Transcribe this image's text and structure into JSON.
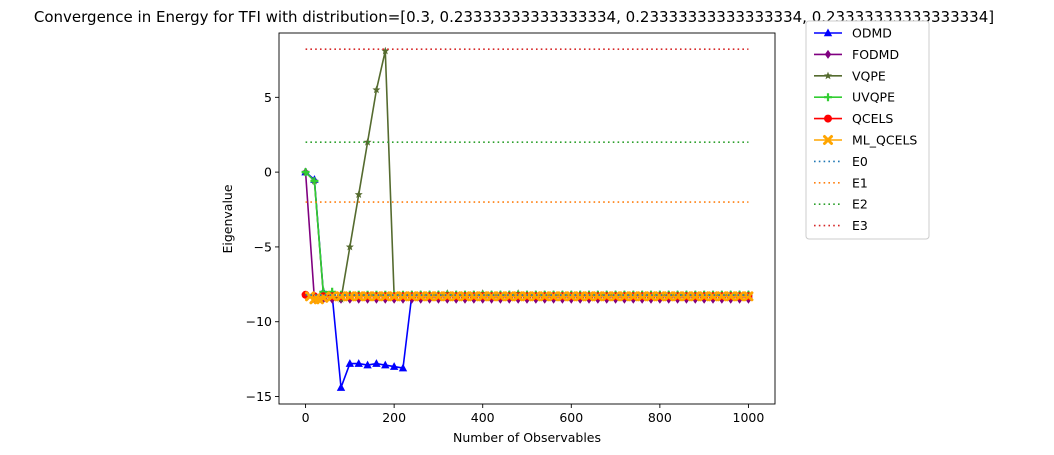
{
  "chart_data": {
    "type": "line",
    "title": "Convergence in Energy for TFI with distribution=[0.3, 0.23333333333333334, 0.23333333333333334, 0.23333333333333334]",
    "xlabel": "Number of Observables",
    "ylabel": "Eigenvalue",
    "xlim": [
      -60,
      1060
    ],
    "ylim": [
      -15.5,
      9.3
    ],
    "xticks": [
      0,
      200,
      400,
      600,
      800,
      1000
    ],
    "xtick_labels": [
      "0",
      "200",
      "400",
      "600",
      "800",
      "1000"
    ],
    "yticks": [
      -15,
      -10,
      -5,
      0,
      5
    ],
    "ytick_labels": [
      "−15",
      "−10",
      "−5",
      "0",
      "5"
    ],
    "grid": false,
    "legend_placement": "outside-upper-right",
    "series": [
      {
        "name": "ODMD",
        "color": "#0000ff",
        "marker": "triangle",
        "linestyle": "solid",
        "x": [
          0,
          20,
          40,
          60,
          80,
          100,
          120,
          140,
          160,
          180,
          200,
          220,
          240,
          260,
          280,
          300,
          320,
          340,
          360,
          380,
          400,
          420,
          440,
          460,
          480,
          500,
          520,
          540,
          560,
          580,
          600,
          620,
          640,
          660,
          680,
          700,
          720,
          740,
          760,
          780,
          800,
          820,
          840,
          860,
          880,
          900,
          920,
          940,
          960,
          980,
          1000
        ],
        "y": [
          0.0,
          -0.5,
          -8.0,
          -8.2,
          -14.4,
          -12.8,
          -12.8,
          -12.9,
          -12.8,
          -12.9,
          -13.0,
          -13.1,
          -8.2,
          -8.2,
          -8.2,
          -8.2,
          -8.2,
          -8.2,
          -8.2,
          -8.2,
          -8.2,
          -8.2,
          -8.2,
          -8.2,
          -8.2,
          -8.2,
          -8.2,
          -8.2,
          -8.2,
          -8.2,
          -8.2,
          -8.2,
          -8.2,
          -8.2,
          -8.2,
          -8.2,
          -8.2,
          -8.2,
          -8.2,
          -8.2,
          -8.2,
          -8.2,
          -8.2,
          -8.2,
          -8.2,
          -8.2,
          -8.2,
          -8.2,
          -8.2,
          -8.2,
          -8.2
        ]
      },
      {
        "name": "FODMD",
        "color": "#800080",
        "marker": "diamond",
        "linestyle": "solid",
        "x": [
          0,
          20,
          40,
          60,
          80,
          100,
          120,
          140,
          160,
          180,
          200,
          220,
          240,
          260,
          280,
          300,
          320,
          340,
          360,
          380,
          400,
          420,
          440,
          460,
          480,
          500,
          520,
          540,
          560,
          580,
          600,
          620,
          640,
          660,
          680,
          700,
          720,
          740,
          760,
          780,
          800,
          820,
          840,
          860,
          880,
          900,
          920,
          940,
          960,
          980,
          1000
        ],
        "y": [
          0.0,
          -8.5,
          -8.5,
          -8.5,
          -8.5,
          -8.5,
          -8.5,
          -8.5,
          -8.5,
          -8.5,
          -8.5,
          -8.5,
          -8.5,
          -8.5,
          -8.5,
          -8.5,
          -8.5,
          -8.5,
          -8.5,
          -8.5,
          -8.5,
          -8.5,
          -8.5,
          -8.5,
          -8.5,
          -8.5,
          -8.5,
          -8.5,
          -8.5,
          -8.5,
          -8.5,
          -8.5,
          -8.5,
          -8.5,
          -8.5,
          -8.5,
          -8.5,
          -8.5,
          -8.5,
          -8.5,
          -8.5,
          -8.5,
          -8.5,
          -8.5,
          -8.5,
          -8.5,
          -8.5,
          -8.5,
          -8.5,
          -8.5,
          -8.5
        ]
      },
      {
        "name": "VQPE",
        "color": "#556b2f",
        "marker": "star",
        "linestyle": "solid",
        "x": [
          0,
          20,
          40,
          60,
          80,
          100,
          120,
          140,
          160,
          180,
          200,
          220,
          240,
          260,
          280,
          300,
          320,
          340,
          360,
          380,
          400,
          420,
          440,
          460,
          480,
          500,
          520,
          540,
          560,
          580,
          600,
          620,
          640,
          660,
          680,
          700,
          720,
          740,
          760,
          780,
          800,
          820,
          840,
          860,
          880,
          900,
          920,
          940,
          960,
          980,
          1000
        ],
        "y": [
          0.0,
          -0.6,
          -8.1,
          -8.3,
          -8.5,
          -5.0,
          -1.5,
          2.0,
          5.5,
          8.1,
          -8.3,
          -8.3,
          -8.3,
          -8.3,
          -8.3,
          -8.3,
          -8.1,
          -8.3,
          -8.3,
          -8.3,
          -8.1,
          -8.3,
          -8.3,
          -8.3,
          -8.1,
          -8.3,
          -8.3,
          -8.3,
          -8.3,
          -8.3,
          -8.3,
          -8.3,
          -8.3,
          -8.3,
          -8.3,
          -8.3,
          -8.3,
          -8.3,
          -8.3,
          -8.3,
          -8.3,
          -8.3,
          -8.3,
          -8.3,
          -8.3,
          -8.3,
          -8.3,
          -8.3,
          -8.3,
          -8.3,
          -8.3
        ]
      },
      {
        "name": "UVQPE",
        "color": "#32cd32",
        "marker": "plus",
        "linestyle": "solid",
        "x": [
          0,
          20,
          40,
          60,
          80,
          100,
          120,
          140,
          160,
          180,
          200,
          220,
          240,
          260,
          280,
          300,
          320,
          340,
          360,
          380,
          400,
          420,
          440,
          460,
          480,
          500,
          520,
          540,
          560,
          580,
          600,
          620,
          640,
          660,
          680,
          700,
          720,
          740,
          760,
          780,
          800,
          820,
          840,
          860,
          880,
          900,
          920,
          940,
          960,
          980,
          1000
        ],
        "y": [
          0.0,
          -0.6,
          -8.0,
          -8.0,
          -8.2,
          -8.2,
          -8.2,
          -8.2,
          -8.2,
          -8.2,
          -8.2,
          -8.2,
          -8.2,
          -8.2,
          -8.2,
          -8.2,
          -8.2,
          -8.2,
          -8.2,
          -8.2,
          -8.2,
          -8.2,
          -8.2,
          -8.2,
          -8.2,
          -8.2,
          -8.2,
          -8.2,
          -8.2,
          -8.2,
          -8.2,
          -8.2,
          -8.2,
          -8.2,
          -8.2,
          -8.2,
          -8.2,
          -8.2,
          -8.2,
          -8.2,
          -8.2,
          -8.2,
          -8.2,
          -8.2,
          -8.2,
          -8.2,
          -8.2,
          -8.2,
          -8.2,
          -8.2,
          -8.2
        ]
      },
      {
        "name": "QCELS",
        "color": "#ff0000",
        "marker": "circle",
        "linestyle": "solid",
        "x": [
          0,
          20,
          40,
          60,
          80,
          100,
          120,
          140,
          160,
          180,
          200,
          220,
          240,
          260,
          280,
          300,
          320,
          340,
          360,
          380,
          400,
          420,
          440,
          460,
          480,
          500,
          520,
          540,
          560,
          580,
          600,
          620,
          640,
          660,
          680,
          700,
          720,
          740,
          760,
          780,
          800,
          820,
          840,
          860,
          880,
          900,
          920,
          940,
          960,
          980,
          1000
        ],
        "y": [
          -8.2,
          -8.3,
          -8.3,
          -8.3,
          -8.3,
          -8.3,
          -8.3,
          -8.3,
          -8.3,
          -8.3,
          -8.3,
          -8.3,
          -8.3,
          -8.3,
          -8.3,
          -8.3,
          -8.3,
          -8.3,
          -8.3,
          -8.3,
          -8.3,
          -8.3,
          -8.3,
          -8.3,
          -8.3,
          -8.3,
          -8.3,
          -8.3,
          -8.3,
          -8.3,
          -8.3,
          -8.3,
          -8.3,
          -8.3,
          -8.3,
          -8.3,
          -8.3,
          -8.3,
          -8.3,
          -8.3,
          -8.3,
          -8.3,
          -8.3,
          -8.3,
          -8.3,
          -8.3,
          -8.3,
          -8.3,
          -8.3,
          -8.3,
          -8.3
        ]
      },
      {
        "name": "ML_QCELS",
        "color": "#ffa500",
        "marker": "x",
        "linestyle": "solid",
        "x": [
          10,
          20,
          30,
          40,
          60,
          80,
          100,
          120,
          140,
          160,
          180,
          200,
          220,
          240,
          260,
          280,
          300,
          320,
          340,
          360,
          380,
          400,
          420,
          440,
          460,
          480,
          500,
          520,
          540,
          560,
          580,
          600,
          620,
          640,
          660,
          680,
          700,
          720,
          740,
          760,
          780,
          800,
          820,
          840,
          860,
          880,
          900,
          920,
          940,
          960,
          980,
          1000
        ],
        "y": [
          -8.3,
          -8.5,
          -8.5,
          -8.4,
          -8.3,
          -8.3,
          -8.3,
          -8.3,
          -8.3,
          -8.3,
          -8.3,
          -8.3,
          -8.3,
          -8.3,
          -8.3,
          -8.3,
          -8.3,
          -8.3,
          -8.3,
          -8.3,
          -8.3,
          -8.3,
          -8.3,
          -8.3,
          -8.3,
          -8.3,
          -8.3,
          -8.3,
          -8.3,
          -8.3,
          -8.3,
          -8.3,
          -8.3,
          -8.3,
          -8.3,
          -8.3,
          -8.3,
          -8.3,
          -8.3,
          -8.3,
          -8.3,
          -8.3,
          -8.3,
          -8.3,
          -8.3,
          -8.3,
          -8.3,
          -8.3,
          -8.3,
          -8.3,
          -8.3,
          -8.3
        ]
      },
      {
        "name": "E0",
        "color": "#1f77b4",
        "marker": "none",
        "linestyle": "dotted",
        "x": [
          0,
          1000
        ],
        "y": [
          -8.22,
          -8.22
        ]
      },
      {
        "name": "E1",
        "color": "#ff7f0e",
        "marker": "none",
        "linestyle": "dotted",
        "x": [
          0,
          1000
        ],
        "y": [
          -2.0,
          -2.0
        ]
      },
      {
        "name": "E2",
        "color": "#2ca02c",
        "marker": "none",
        "linestyle": "dotted",
        "x": [
          0,
          1000
        ],
        "y": [
          2.0,
          2.0
        ]
      },
      {
        "name": "E3",
        "color": "#d62728",
        "marker": "none",
        "linestyle": "dotted",
        "x": [
          0,
          1000
        ],
        "y": [
          8.22,
          8.22
        ]
      }
    ]
  }
}
